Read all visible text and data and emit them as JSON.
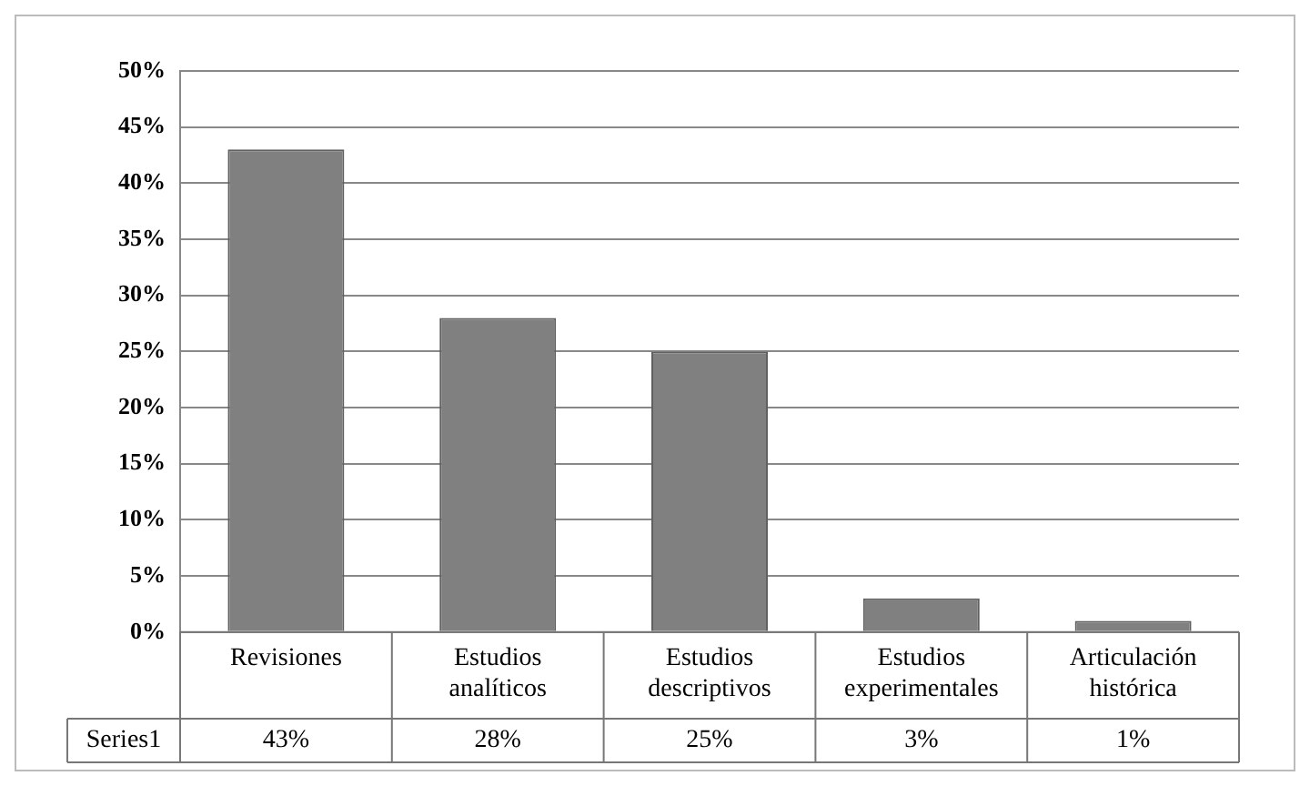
{
  "chart_data": {
    "type": "bar",
    "categories": [
      "Revisiones",
      "Estudios analíticos",
      "Estudios descriptivos",
      "Estudios experimentales",
      "Articulación histórica"
    ],
    "series": [
      {
        "name": "Series1",
        "color": "#808080",
        "values": [
          43,
          28,
          25,
          3,
          1
        ],
        "value_labels": [
          "43%",
          "28%",
          "25%",
          "3%",
          "1%"
        ]
      }
    ],
    "ylim": [
      0,
      50
    ],
    "yticks": [
      {
        "value": 0,
        "label": "0%"
      },
      {
        "value": 5,
        "label": "5%"
      },
      {
        "value": 10,
        "label": "10%"
      },
      {
        "value": 15,
        "label": "15%"
      },
      {
        "value": 20,
        "label": "20%"
      },
      {
        "value": 25,
        "label": "25%"
      },
      {
        "value": 30,
        "label": "30%"
      },
      {
        "value": 35,
        "label": "35%"
      },
      {
        "value": 40,
        "label": "40%"
      },
      {
        "value": 45,
        "label": "45%"
      },
      {
        "value": 50,
        "label": "50%"
      }
    ],
    "grid": "y",
    "legend": "bottom"
  }
}
